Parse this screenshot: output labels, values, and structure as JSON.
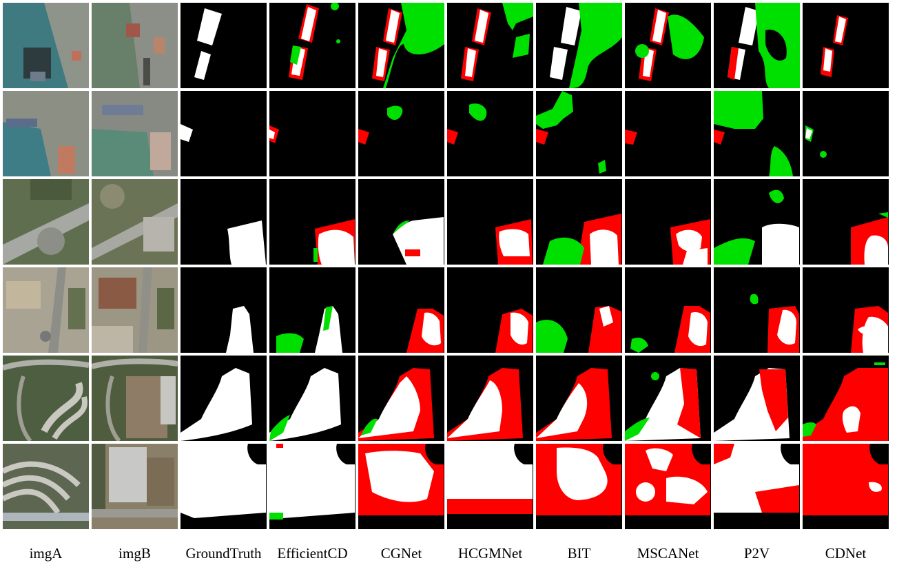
{
  "columns": [
    "imgA",
    "imgB",
    "GroundTruth",
    "EfficientCD",
    "CGNet",
    "HCGMNet",
    "BIT",
    "MSCANet",
    "P2V",
    "CDNet"
  ],
  "colors": {
    "true_positive": "#ffffff",
    "true_negative": "#000000",
    "false_positive": "#ff0000",
    "false_negative": "#00e000"
  },
  "rows": 6
}
